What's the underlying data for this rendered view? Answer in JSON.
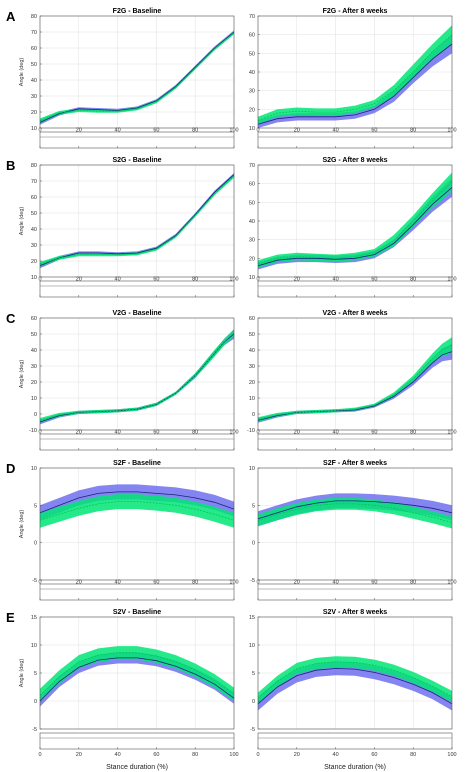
{
  "colors": {
    "blue": "#6666ee",
    "green": "#00e676",
    "blue_line": "#1a237e",
    "green_line": "#00c853"
  },
  "x_label": "Stance duration (%)",
  "chart_data": [
    {
      "id": "A-left",
      "letter": "A",
      "type": "area",
      "title": "F2G - Baseline",
      "ylabel": "Angle (deg)",
      "xlim": [
        0,
        100
      ],
      "ylim": [
        10,
        80
      ],
      "yticks": [
        10,
        20,
        30,
        40,
        50,
        60,
        70,
        80
      ],
      "xticks": [
        0,
        20,
        40,
        60,
        80,
        100
      ],
      "x": [
        0,
        10,
        20,
        30,
        40,
        50,
        60,
        70,
        80,
        90,
        100
      ],
      "series": [
        {
          "name": "blue",
          "mean": [
            13.5,
            19,
            22,
            21.5,
            21,
            22.5,
            27,
            36,
            48,
            60,
            70
          ],
          "sd": [
            1.5,
            1.2,
            1,
            1,
            1,
            1,
            1,
            1,
            1,
            1,
            1
          ]
        },
        {
          "name": "green",
          "mean": [
            14.5,
            19.5,
            21,
            20.5,
            20.5,
            22,
            26.5,
            35.5,
            47.5,
            59.5,
            69.5
          ],
          "sd": [
            1.5,
            1.2,
            1,
            1,
            1,
            1,
            1,
            1,
            1,
            1,
            1
          ]
        }
      ]
    },
    {
      "id": "A-right",
      "letter": "",
      "type": "area",
      "title": "F2G - After 8 weeks",
      "ylabel": "",
      "xlim": [
        0,
        100
      ],
      "ylim": [
        10,
        70
      ],
      "yticks": [
        10,
        20,
        30,
        40,
        50,
        60,
        70
      ],
      "xticks": [
        0,
        20,
        40,
        60,
        80,
        100
      ],
      "x": [
        0,
        10,
        20,
        30,
        40,
        50,
        60,
        70,
        80,
        90,
        100
      ],
      "series": [
        {
          "name": "blue",
          "mean": [
            12,
            15,
            16,
            16,
            16,
            17,
            20,
            27,
            37,
            47,
            55
          ],
          "sd": [
            2,
            2,
            2,
            2,
            2,
            2,
            2,
            3,
            3,
            4,
            5
          ]
        },
        {
          "name": "green",
          "mean": [
            14,
            18,
            19,
            18.5,
            18.5,
            20,
            23,
            30,
            40,
            51,
            60
          ],
          "sd": [
            2,
            2,
            2,
            2,
            2,
            2,
            2,
            3,
            4,
            4,
            5
          ]
        }
      ]
    },
    {
      "id": "B-left",
      "letter": "B",
      "type": "area",
      "title": "S2G - Baseline",
      "ylabel": "Angle (deg)",
      "xlim": [
        0,
        100
      ],
      "ylim": [
        10,
        80
      ],
      "yticks": [
        10,
        20,
        30,
        40,
        50,
        60,
        70,
        80
      ],
      "xticks": [
        0,
        20,
        40,
        60,
        80,
        100
      ],
      "x": [
        0,
        10,
        20,
        30,
        40,
        50,
        60,
        70,
        80,
        90,
        100
      ],
      "series": [
        {
          "name": "blue",
          "mean": [
            17,
            22,
            25,
            25,
            24.5,
            25,
            28,
            36,
            49,
            63,
            74
          ],
          "sd": [
            1.5,
            1.2,
            1,
            1,
            1,
            1,
            1,
            1,
            1,
            1,
            1
          ]
        },
        {
          "name": "green",
          "mean": [
            18,
            22,
            24,
            24,
            24,
            24.5,
            27.5,
            35.5,
            48.5,
            62,
            73
          ],
          "sd": [
            1.5,
            1.2,
            1,
            1,
            1,
            1,
            1,
            1,
            1,
            1,
            1
          ]
        }
      ]
    },
    {
      "id": "B-right",
      "letter": "",
      "type": "area",
      "title": "S2G - After 8 weeks",
      "ylabel": "",
      "xlim": [
        0,
        100
      ],
      "ylim": [
        10,
        70
      ],
      "yticks": [
        10,
        20,
        30,
        40,
        50,
        60,
        70
      ],
      "xticks": [
        0,
        20,
        40,
        60,
        80,
        100
      ],
      "x": [
        0,
        10,
        20,
        30,
        40,
        50,
        60,
        70,
        80,
        90,
        100
      ],
      "series": [
        {
          "name": "blue",
          "mean": [
            16,
            19,
            20,
            20,
            19.5,
            20,
            22,
            28,
            38,
            49,
            58
          ],
          "sd": [
            2,
            2,
            2,
            2,
            2,
            2,
            2,
            2,
            3,
            4,
            5
          ]
        },
        {
          "name": "green",
          "mean": [
            17,
            20,
            21,
            20.5,
            20,
            21,
            23,
            29.5,
            40,
            51,
            61
          ],
          "sd": [
            2,
            2,
            2,
            2,
            2,
            2,
            2,
            3,
            3,
            4,
            5
          ]
        }
      ]
    },
    {
      "id": "C-left",
      "letter": "C",
      "type": "area",
      "title": "V2G - Baseline",
      "ylabel": "Angle (deg)",
      "xlim": [
        0,
        100
      ],
      "ylim": [
        -10,
        60
      ],
      "yticks": [
        -10,
        0,
        10,
        20,
        30,
        40,
        50,
        60
      ],
      "xticks": [
        0,
        20,
        40,
        60,
        80,
        100
      ],
      "x": [
        0,
        10,
        20,
        30,
        40,
        50,
        60,
        70,
        80,
        90,
        95,
        100
      ],
      "series": [
        {
          "name": "blue",
          "mean": [
            -5,
            -1,
            1,
            1.5,
            2,
            3,
            6,
            13,
            24,
            38,
            45,
            50
          ],
          "sd": [
            1.5,
            1.2,
            1,
            1,
            1,
            1,
            1,
            1,
            1.5,
            2,
            2,
            3
          ]
        },
        {
          "name": "green",
          "mean": [
            -4,
            -0.5,
            1,
            1.5,
            2,
            3,
            6,
            13,
            24,
            38,
            45,
            51
          ],
          "sd": [
            1.5,
            1.2,
            1,
            1,
            1,
            1,
            1,
            1,
            1.5,
            2,
            2,
            2
          ]
        }
      ]
    },
    {
      "id": "C-right",
      "letter": "",
      "type": "area",
      "title": "V2G - After 8 weeks",
      "ylabel": "",
      "xlim": [
        0,
        100
      ],
      "ylim": [
        -10,
        60
      ],
      "yticks": [
        -10,
        0,
        10,
        20,
        30,
        40,
        50,
        60
      ],
      "xticks": [
        0,
        20,
        40,
        60,
        80,
        100
      ],
      "x": [
        0,
        10,
        20,
        30,
        40,
        50,
        60,
        70,
        80,
        90,
        95,
        100
      ],
      "series": [
        {
          "name": "blue",
          "mean": [
            -4,
            -1,
            1,
            1.5,
            2,
            2.5,
            5,
            11,
            20,
            32,
            37,
            39
          ],
          "sd": [
            1.5,
            1.2,
            1,
            1,
            1,
            1,
            1,
            1.5,
            2,
            3,
            4,
            5
          ]
        },
        {
          "name": "green",
          "mean": [
            -3.5,
            -0.5,
            1,
            1.5,
            2,
            3,
            5.5,
            12,
            22,
            35,
            40,
            43
          ],
          "sd": [
            1.5,
            1.2,
            1,
            1,
            1,
            1,
            1,
            1.5,
            2,
            3,
            4,
            5
          ]
        }
      ]
    },
    {
      "id": "D-left",
      "letter": "D",
      "type": "area",
      "title": "S2F - Baseline",
      "ylabel": "Angle (deg)",
      "xlim": [
        0,
        100
      ],
      "ylim": [
        -5,
        10
      ],
      "yticks": [
        -5,
        0,
        5,
        10
      ],
      "xticks": [
        0,
        20,
        40,
        60,
        80,
        100
      ],
      "x": [
        0,
        10,
        20,
        30,
        40,
        50,
        60,
        70,
        80,
        90,
        100
      ],
      "series": [
        {
          "name": "blue",
          "mean": [
            4,
            5,
            6,
            6.6,
            6.8,
            6.8,
            6.6,
            6.4,
            6,
            5.4,
            4.5
          ],
          "sd": [
            1,
            1,
            1,
            1,
            1,
            1,
            1,
            1,
            1,
            1,
            1
          ]
        },
        {
          "name": "green",
          "mean": [
            3,
            3.8,
            4.6,
            5.2,
            5.5,
            5.5,
            5.3,
            5,
            4.5,
            3.8,
            3
          ],
          "sd": [
            1,
            1,
            1,
            1,
            1,
            1,
            1,
            1,
            1,
            1,
            1
          ]
        }
      ]
    },
    {
      "id": "D-right",
      "letter": "",
      "type": "area",
      "title": "S2F - After 8 weeks",
      "ylabel": "",
      "xlim": [
        0,
        100
      ],
      "ylim": [
        -5,
        10
      ],
      "yticks": [
        -5,
        0,
        5,
        10
      ],
      "xticks": [
        0,
        20,
        40,
        60,
        80,
        100
      ],
      "x": [
        0,
        10,
        20,
        30,
        40,
        50,
        60,
        70,
        80,
        90,
        100
      ],
      "series": [
        {
          "name": "blue",
          "mean": [
            3.2,
            4,
            4.8,
            5.3,
            5.6,
            5.6,
            5.5,
            5.3,
            5,
            4.6,
            4
          ],
          "sd": [
            1,
            1,
            1,
            1,
            1,
            1,
            1,
            1,
            1,
            1,
            1
          ]
        },
        {
          "name": "green",
          "mean": [
            3,
            3.8,
            4.5,
            5,
            5.2,
            5.2,
            5,
            4.6,
            4,
            3.4,
            2.7
          ],
          "sd": [
            0.8,
            0.8,
            0.8,
            0.8,
            0.8,
            0.8,
            0.8,
            0.8,
            0.8,
            0.8,
            0.8
          ]
        }
      ]
    },
    {
      "id": "E-left",
      "letter": "E",
      "type": "area",
      "title": "S2V - Baseline",
      "ylabel": "Angle (deg)",
      "xlim": [
        0,
        100
      ],
      "ylim": [
        -5,
        15
      ],
      "yticks": [
        -5,
        0,
        5,
        10,
        15
      ],
      "xticks": [
        0,
        20,
        40,
        60,
        80,
        100
      ],
      "x": [
        0,
        10,
        20,
        30,
        40,
        50,
        60,
        70,
        80,
        90,
        100
      ],
      "series": [
        {
          "name": "blue",
          "mean": [
            0,
            3.5,
            6,
            7.3,
            7.7,
            7.7,
            7.2,
            6.2,
            4.8,
            3,
            0.5
          ],
          "sd": [
            1,
            1,
            1,
            1,
            1,
            1,
            1,
            1,
            1,
            1,
            1
          ]
        },
        {
          "name": "green",
          "mean": [
            1,
            4.3,
            7,
            8.2,
            8.6,
            8.6,
            8,
            7,
            5.5,
            3.6,
            1.2
          ],
          "sd": [
            1.2,
            1.2,
            1.2,
            1.2,
            1.2,
            1.2,
            1.2,
            1.2,
            1.2,
            1.2,
            1.2
          ]
        }
      ]
    },
    {
      "id": "E-right",
      "letter": "",
      "type": "area",
      "title": "S2V - After 8 weeks",
      "ylabel": "",
      "xlim": [
        0,
        100
      ],
      "ylim": [
        -5,
        15
      ],
      "yticks": [
        -5,
        0,
        5,
        10,
        15
      ],
      "xticks": [
        0,
        20,
        40,
        60,
        80,
        100
      ],
      "x": [
        0,
        10,
        20,
        30,
        40,
        50,
        60,
        70,
        80,
        90,
        100
      ],
      "series": [
        {
          "name": "blue",
          "mean": [
            -0.5,
            2.5,
            4.5,
            5.5,
            5.8,
            5.7,
            5.1,
            4.2,
            3,
            1.5,
            -0.5
          ],
          "sd": [
            1.2,
            1.2,
            1.2,
            1.2,
            1.2,
            1.2,
            1.2,
            1.2,
            1.2,
            1.2,
            1.2
          ]
        },
        {
          "name": "green",
          "mean": [
            0.5,
            3.5,
            5.8,
            6.7,
            7,
            6.9,
            6.4,
            5.5,
            4.2,
            2.6,
            0.8
          ],
          "sd": [
            1,
            1,
            1,
            1,
            1,
            1,
            1,
            1,
            1,
            1,
            1
          ]
        }
      ]
    }
  ]
}
